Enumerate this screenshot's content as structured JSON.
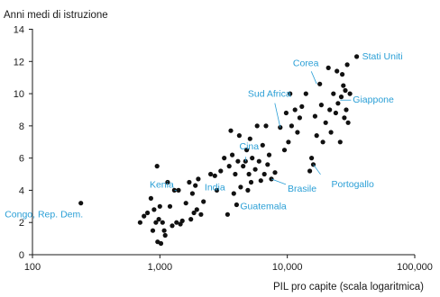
{
  "chart_data": {
    "type": "scatter",
    "title": "",
    "ylabel": "Anni medi di istruzione",
    "xlabel": "PIL pro capite (scala logaritmica)",
    "x_scale": "log",
    "xlim": [
      100,
      100000
    ],
    "ylim": [
      0,
      14
    ],
    "x_ticks": [
      100,
      1000,
      10000,
      100000
    ],
    "x_tick_labels": [
      "100",
      "1,000",
      "10,000",
      "100,000"
    ],
    "y_ticks": [
      0,
      2,
      4,
      6,
      8,
      10,
      12,
      14
    ],
    "y_tick_labels": [
      "0",
      "2",
      "4",
      "6",
      "8",
      "10",
      "12",
      "14"
    ],
    "grid": false,
    "annotation_color": "#2a9fd6",
    "point_color": "#111111",
    "annotations": [
      {
        "text": "Congo, Rep. Dem.",
        "x": 240,
        "y": 3.2
      },
      {
        "text": "Kenia",
        "x": 1350,
        "y": 4.0
      },
      {
        "text": "India",
        "x": 2700,
        "y": 4.9
      },
      {
        "text": "Cina",
        "x": 4700,
        "y": 5.8
      },
      {
        "text": "Guatemala",
        "x": 4000,
        "y": 3.1
      },
      {
        "text": "Brasile",
        "x": 7500,
        "y": 4.7
      },
      {
        "text": "Portogallo",
        "x": 16000,
        "y": 5.6
      },
      {
        "text": "Sud Africa",
        "x": 8800,
        "y": 7.9
      },
      {
        "text": "Corea",
        "x": 17000,
        "y": 10.6
      },
      {
        "text": "Stati Uniti",
        "x": 35000,
        "y": 12.3
      },
      {
        "text": "Giappone",
        "x": 26000,
        "y": 9.6
      }
    ],
    "points": [
      [
        240,
        3.2
      ],
      [
        700,
        2.0
      ],
      [
        750,
        2.4
      ],
      [
        800,
        2.6
      ],
      [
        850,
        3.5
      ],
      [
        880,
        1.5
      ],
      [
        900,
        2.8
      ],
      [
        930,
        2.0
      ],
      [
        950,
        5.5
      ],
      [
        960,
        0.8
      ],
      [
        980,
        2.2
      ],
      [
        1000,
        3.0
      ],
      [
        1020,
        0.7
      ],
      [
        1050,
        2.0
      ],
      [
        1080,
        1.5
      ],
      [
        1100,
        1.2
      ],
      [
        1150,
        4.5
      ],
      [
        1200,
        3.0
      ],
      [
        1250,
        1.8
      ],
      [
        1300,
        4.0
      ],
      [
        1350,
        2.0
      ],
      [
        1400,
        4.0
      ],
      [
        1450,
        1.9
      ],
      [
        1500,
        2.1
      ],
      [
        1600,
        3.2
      ],
      [
        1700,
        4.5
      ],
      [
        1750,
        2.2
      ],
      [
        1800,
        3.8
      ],
      [
        1850,
        2.6
      ],
      [
        1900,
        4.3
      ],
      [
        1950,
        2.8
      ],
      [
        2000,
        4.7
      ],
      [
        2100,
        2.5
      ],
      [
        2200,
        3.3
      ],
      [
        2500,
        5.0
      ],
      [
        2700,
        4.9
      ],
      [
        2800,
        4.0
      ],
      [
        3000,
        5.2
      ],
      [
        3200,
        6.0
      ],
      [
        3400,
        2.5
      ],
      [
        3500,
        5.5
      ],
      [
        3600,
        7.7
      ],
      [
        3700,
        6.2
      ],
      [
        3800,
        3.8
      ],
      [
        3900,
        5.0
      ],
      [
        4000,
        3.1
      ],
      [
        4100,
        5.8
      ],
      [
        4200,
        7.4
      ],
      [
        4300,
        4.2
      ],
      [
        4500,
        5.5
      ],
      [
        4700,
        5.8
      ],
      [
        4800,
        6.5
      ],
      [
        4900,
        4.0
      ],
      [
        5000,
        5.0
      ],
      [
        5100,
        7.2
      ],
      [
        5200,
        4.5
      ],
      [
        5300,
        6.0
      ],
      [
        5600,
        5.3
      ],
      [
        5800,
        8.0
      ],
      [
        6000,
        5.8
      ],
      [
        6200,
        4.6
      ],
      [
        6400,
        6.8
      ],
      [
        6600,
        5.0
      ],
      [
        6800,
        8.0
      ],
      [
        7000,
        5.6
      ],
      [
        7200,
        6.2
      ],
      [
        7500,
        4.7
      ],
      [
        8000,
        5.1
      ],
      [
        8800,
        7.9
      ],
      [
        9500,
        6.5
      ],
      [
        9800,
        8.8
      ],
      [
        10200,
        7.0
      ],
      [
        10500,
        10.0
      ],
      [
        10800,
        8.0
      ],
      [
        11500,
        9.0
      ],
      [
        12000,
        7.6
      ],
      [
        12500,
        8.5
      ],
      [
        13000,
        9.2
      ],
      [
        14000,
        10.0
      ],
      [
        15000,
        5.2
      ],
      [
        15500,
        6.0
      ],
      [
        16000,
        5.6
      ],
      [
        16500,
        8.6
      ],
      [
        17000,
        7.4
      ],
      [
        18000,
        10.6
      ],
      [
        18500,
        9.3
      ],
      [
        19000,
        7.0
      ],
      [
        20000,
        8.2
      ],
      [
        21000,
        11.6
      ],
      [
        21500,
        9.0
      ],
      [
        22000,
        7.6
      ],
      [
        23000,
        10.0
      ],
      [
        24000,
        8.8
      ],
      [
        24500,
        11.4
      ],
      [
        25000,
        9.4
      ],
      [
        26000,
        7.0
      ],
      [
        26500,
        9.8
      ],
      [
        27000,
        11.2
      ],
      [
        27500,
        10.5
      ],
      [
        28000,
        8.5
      ],
      [
        28500,
        10.2
      ],
      [
        29000,
        9.0
      ],
      [
        29500,
        11.8
      ],
      [
        30000,
        8.2
      ],
      [
        31000,
        10.0
      ],
      [
        35000,
        12.3
      ]
    ]
  }
}
